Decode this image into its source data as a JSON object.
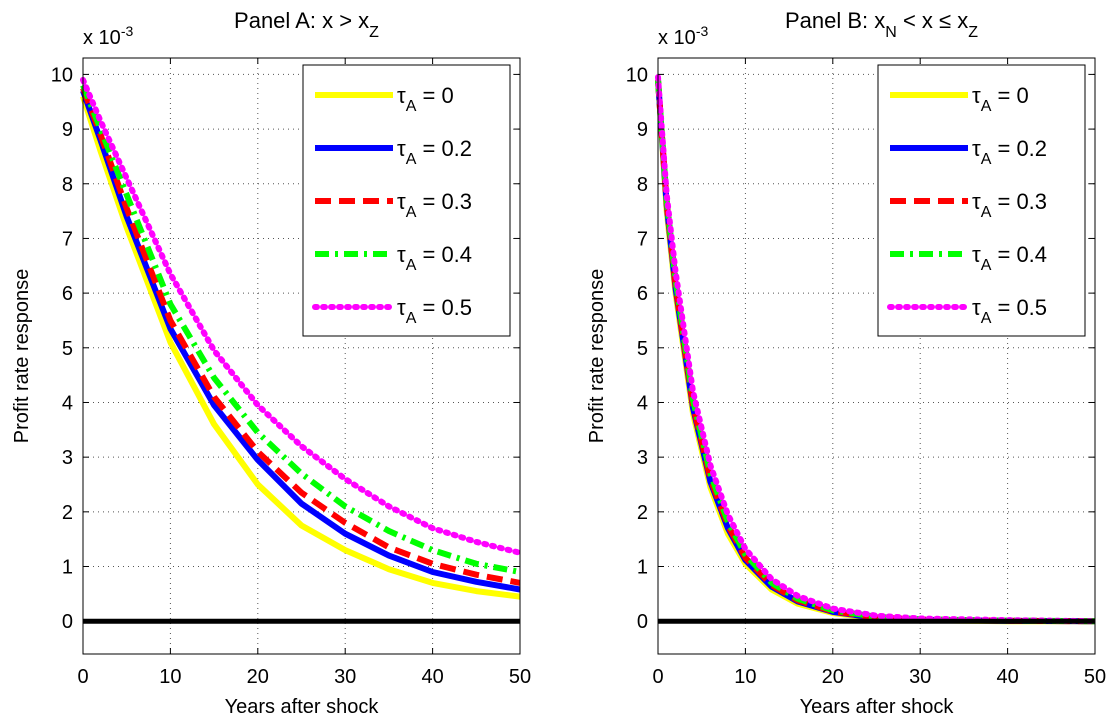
{
  "chart_data": [
    {
      "type": "line",
      "title": "Panel A: x > x_Z",
      "title_parts": {
        "main": "Panel A: x > x",
        "sub": "Z",
        "tail": ""
      },
      "xlabel": "Years after shock",
      "ylabel": "Profit rate response",
      "exponent_label": {
        "base": "x 10",
        "sup": "-3"
      },
      "xlim": [
        0,
        50
      ],
      "ylim": [
        -0.6,
        10.3
      ],
      "xticks": [
        0,
        10,
        20,
        30,
        40,
        50
      ],
      "yticks": [
        0,
        1,
        2,
        3,
        4,
        5,
        6,
        7,
        8,
        9,
        10
      ],
      "grid": true,
      "legend_position": "top-right",
      "x": [
        0,
        2,
        5,
        10,
        15,
        20,
        25,
        30,
        35,
        40,
        45,
        50
      ],
      "series": [
        {
          "name": "τ_A = 0",
          "color": "#ffff00",
          "dash": "solid",
          "values": [
            9.6,
            8.6,
            7.2,
            5.1,
            3.6,
            2.5,
            1.75,
            1.3,
            0.95,
            0.7,
            0.55,
            0.45
          ]
        },
        {
          "name": "τ_A = 0.2",
          "color": "#0000ff",
          "dash": "solid",
          "values": [
            9.7,
            8.8,
            7.4,
            5.35,
            3.95,
            2.95,
            2.15,
            1.6,
            1.2,
            0.9,
            0.72,
            0.58
          ]
        },
        {
          "name": "τ_A = 0.3",
          "color": "#ff0000",
          "dash": "dashed",
          "values": [
            9.75,
            8.9,
            7.55,
            5.5,
            4.1,
            3.1,
            2.35,
            1.8,
            1.35,
            1.05,
            0.85,
            0.7
          ]
        },
        {
          "name": "τ_A = 0.4",
          "color": "#00ff00",
          "dash": "dashdot",
          "values": [
            9.8,
            9.0,
            7.8,
            5.8,
            4.45,
            3.45,
            2.7,
            2.1,
            1.65,
            1.3,
            1.05,
            0.9
          ]
        },
        {
          "name": "τ_A = 0.5",
          "color": "#ff00ff",
          "dash": "dotted",
          "values": [
            9.9,
            9.15,
            8.1,
            6.35,
            4.95,
            3.95,
            3.2,
            2.6,
            2.1,
            1.7,
            1.45,
            1.25
          ]
        },
        {
          "name": "",
          "color": "#000000",
          "dash": "solid",
          "values": [
            0,
            0,
            0,
            0,
            0,
            0,
            0,
            0,
            0,
            0,
            0,
            0
          ]
        }
      ]
    },
    {
      "type": "line",
      "title": "Panel B: x_N < x ≤ x_Z",
      "title_parts": {
        "main": "Panel B: x",
        "sub": "N",
        "tail": " < x ≤ x",
        "sub2": "Z"
      },
      "xlabel": "Years after shock",
      "ylabel": "Profit rate response",
      "exponent_label": {
        "base": "x 10",
        "sup": "-3"
      },
      "xlim": [
        0,
        50
      ],
      "ylim": [
        -0.6,
        10.3
      ],
      "xticks": [
        0,
        10,
        20,
        30,
        40,
        50
      ],
      "yticks": [
        0,
        1,
        2,
        3,
        4,
        5,
        6,
        7,
        8,
        9,
        10
      ],
      "grid": true,
      "legend_position": "top-right",
      "x": [
        0,
        1,
        2,
        4,
        6,
        8,
        10,
        13,
        16,
        20,
        25,
        30,
        40,
        50
      ],
      "series": [
        {
          "name": "τ_A = 0",
          "color": "#ffff00",
          "dash": "solid",
          "values": [
            9.9,
            7.5,
            6.0,
            3.8,
            2.45,
            1.6,
            1.05,
            0.58,
            0.32,
            0.15,
            0.05,
            0.02,
            0.0,
            0.0
          ]
        },
        {
          "name": "τ_A = 0.2",
          "color": "#0000ff",
          "dash": "solid",
          "values": [
            9.9,
            7.6,
            6.1,
            3.9,
            2.55,
            1.7,
            1.12,
            0.63,
            0.36,
            0.17,
            0.06,
            0.025,
            0.005,
            0.0
          ]
        },
        {
          "name": "τ_A = 0.3",
          "color": "#ff0000",
          "dash": "dashed",
          "values": [
            9.9,
            7.65,
            6.15,
            3.95,
            2.6,
            1.75,
            1.16,
            0.66,
            0.38,
            0.18,
            0.07,
            0.03,
            0.008,
            0.0
          ]
        },
        {
          "name": "τ_A = 0.4",
          "color": "#00ff00",
          "dash": "dashdot",
          "values": [
            9.9,
            7.7,
            6.25,
            4.05,
            2.7,
            1.82,
            1.22,
            0.7,
            0.41,
            0.2,
            0.08,
            0.035,
            0.01,
            0.0
          ]
        },
        {
          "name": "τ_A = 0.5",
          "color": "#ff00ff",
          "dash": "dotted",
          "values": [
            9.95,
            7.8,
            6.4,
            4.2,
            2.85,
            1.95,
            1.32,
            0.77,
            0.46,
            0.23,
            0.1,
            0.05,
            0.02,
            0.0
          ]
        },
        {
          "name": "",
          "color": "#000000",
          "dash": "solid",
          "values": [
            0,
            0,
            0,
            0,
            0,
            0,
            0,
            0,
            0,
            0,
            0,
            0,
            0,
            0
          ]
        }
      ]
    }
  ]
}
